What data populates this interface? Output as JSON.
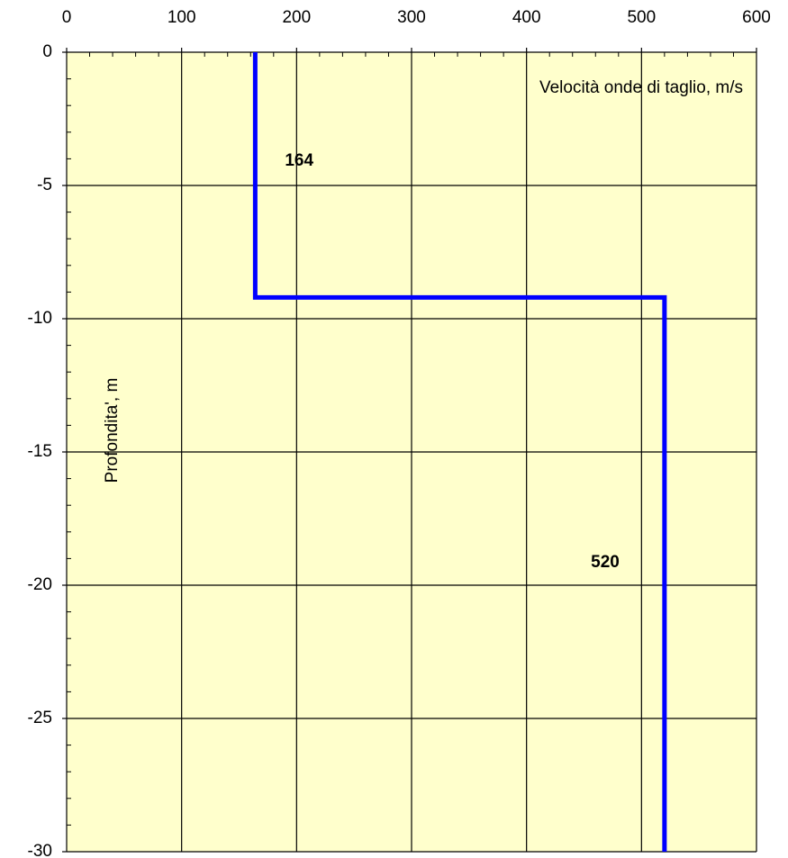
{
  "chart_data": {
    "type": "line",
    "x_label": "Velocità onde di taglio, m/s",
    "y_label": "Profondita', m",
    "x": [
      164,
      164,
      520,
      520
    ],
    "series": [
      {
        "color": "#0000ff",
        "values": [
          0,
          -9.2,
          -9.2,
          -30
        ]
      }
    ],
    "annotations": [
      {
        "text": "164",
        "segment": 0
      },
      {
        "text": "520",
        "segment": 2
      }
    ],
    "xlim": [
      0,
      600
    ],
    "xticks": [
      0,
      100,
      200,
      300,
      400,
      500,
      600
    ],
    "xminorticks": [
      20,
      40,
      60,
      80,
      120,
      140,
      160,
      180,
      220,
      240,
      260,
      280,
      320,
      340,
      360,
      380,
      420,
      440,
      460,
      480,
      520,
      540,
      560,
      580
    ],
    "ylim": [
      -30,
      0
    ],
    "yticks": [
      0,
      -5,
      -10,
      -15,
      -20,
      -25,
      -30
    ],
    "yminorticks": [
      -1,
      -2,
      -3,
      -4,
      -6,
      -7,
      -8,
      -9,
      -11,
      -12,
      -13,
      -14,
      -16,
      -17,
      -18,
      -19,
      -21,
      -22,
      -23,
      -24,
      -26,
      -27,
      -28,
      -29
    ],
    "x_axis_position": "top",
    "grid": true,
    "background": "#ffffcc"
  }
}
